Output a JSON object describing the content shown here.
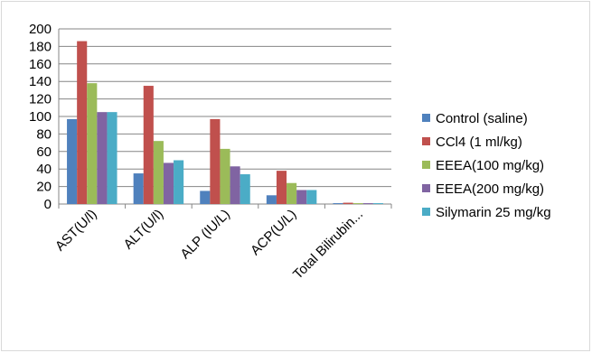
{
  "chart_data": {
    "type": "bar",
    "title": "",
    "xlabel": "",
    "ylabel": "",
    "ylim": [
      0,
      200
    ],
    "yticks": [
      0,
      20,
      40,
      60,
      80,
      100,
      120,
      140,
      160,
      180,
      200
    ],
    "grid": "horizontal",
    "legend_position": "right",
    "categories": [
      "AST(U/l)",
      "ALT(U/l)",
      "ALP (IU/L)",
      "ACP(U/L)",
      "Total Bilirubin..."
    ],
    "series": [
      {
        "name": "Control (saline)",
        "color": "#4F81BD",
        "values": [
          97,
          35,
          15,
          10,
          1
        ]
      },
      {
        "name": "CCl4 (1 ml/kg)",
        "color": "#C0504D",
        "values": [
          186,
          135,
          97,
          38,
          1.5
        ]
      },
      {
        "name": "EEEA(100 mg/kg)",
        "color": "#9BBB59",
        "values": [
          138,
          72,
          63,
          24,
          1
        ]
      },
      {
        "name": "EEEA(200 mg/kg)",
        "color": "#8064A2",
        "values": [
          105,
          47,
          43,
          16,
          1
        ]
      },
      {
        "name": "Silymarin 25 mg/kg",
        "color": "#4BACC6",
        "values": [
          105,
          50,
          34,
          16,
          1
        ]
      }
    ]
  }
}
